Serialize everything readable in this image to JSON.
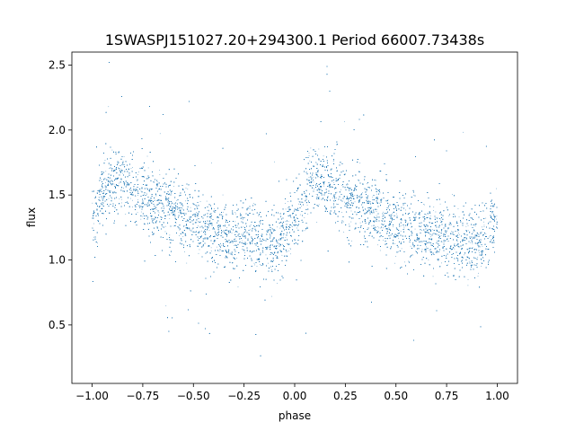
{
  "chart_data": {
    "type": "scatter",
    "title": "1SWASPJ151027.20+294300.1 Period 66007.73438s",
    "xlabel": "phase",
    "ylabel": "flux",
    "xlim": [
      -1.1,
      1.1
    ],
    "ylim": [
      0.05,
      2.6
    ],
    "xticks": [
      -1.0,
      -0.75,
      -0.5,
      -0.25,
      0.0,
      0.25,
      0.5,
      0.75,
      1.0
    ],
    "xtick_labels": [
      "−1.00",
      "−0.75",
      "−0.50",
      "−0.25",
      "0.00",
      "0.25",
      "0.50",
      "0.75",
      "1.00"
    ],
    "yticks": [
      0.5,
      1.0,
      1.5,
      2.0,
      2.5
    ],
    "ytick_labels": [
      "0.5",
      "1.0",
      "1.5",
      "2.0",
      "2.5"
    ],
    "grid": false,
    "marker_color": "#1f77b4",
    "point_count": 24000,
    "phase_range": [
      -1.0,
      1.0
    ],
    "light_curve_profile": {
      "phase": [
        0.0,
        0.05,
        0.1,
        0.15,
        0.2,
        0.3,
        0.4,
        0.5,
        0.6,
        0.7,
        0.8,
        0.85,
        0.9,
        0.95,
        1.0
      ],
      "flux": [
        1.3,
        1.5,
        1.6,
        1.6,
        1.55,
        1.45,
        1.37,
        1.28,
        1.22,
        1.19,
        1.16,
        1.13,
        1.12,
        1.18,
        1.3
      ]
    },
    "flux_scatter_sigma": 0.13
  }
}
